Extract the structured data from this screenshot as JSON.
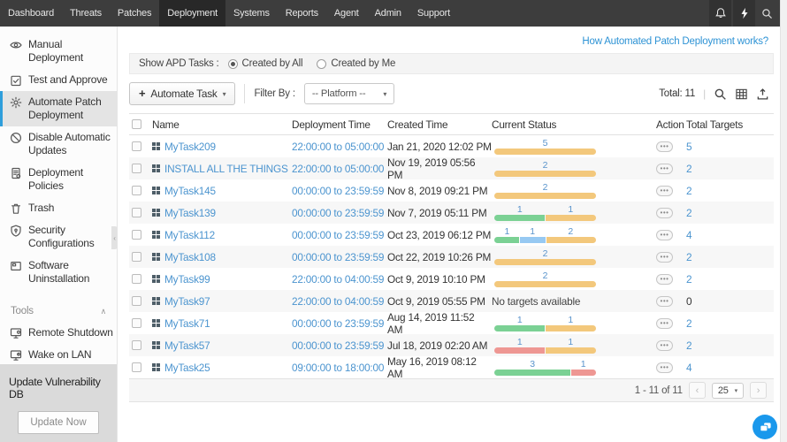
{
  "topnav": {
    "items": [
      {
        "label": "Dashboard",
        "active": false
      },
      {
        "label": "Threats",
        "active": false
      },
      {
        "label": "Patches",
        "active": false
      },
      {
        "label": "Deployment",
        "active": true
      },
      {
        "label": "Systems",
        "active": false
      },
      {
        "label": "Reports",
        "active": false
      },
      {
        "label": "Agent",
        "active": false
      },
      {
        "label": "Admin",
        "active": false
      },
      {
        "label": "Support",
        "active": false
      }
    ],
    "icons": [
      "notification-bell-icon",
      "quick-actions-icon",
      "search-icon"
    ]
  },
  "sidebar": {
    "items": [
      {
        "icon": "eye-icon",
        "label": "Manual Deployment",
        "active": false
      },
      {
        "icon": "test-approve-icon",
        "label": "Test and Approve",
        "active": false
      },
      {
        "icon": "gear-icon",
        "label": "Automate Patch Deployment",
        "active": true
      },
      {
        "icon": "disable-icon",
        "label": "Disable Automatic Updates",
        "active": false
      },
      {
        "icon": "policies-icon",
        "label": "Deployment Policies",
        "active": false
      },
      {
        "icon": "trash-icon",
        "label": "Trash",
        "active": false
      },
      {
        "icon": "security-icon",
        "label": "Security Configurations",
        "active": false
      },
      {
        "icon": "software-icon",
        "label": "Software Uninstallation",
        "active": false
      }
    ],
    "tools_section": {
      "label": "Tools",
      "collapse_caret": "∧",
      "items": [
        {
          "icon": "remote-shutdown-icon",
          "label": "Remote Shutdown"
        },
        {
          "icon": "wake-lan-icon",
          "label": "Wake on LAN"
        }
      ]
    },
    "update_panel": {
      "title": "Update Vulnerability DB",
      "button_label": "Update Now"
    },
    "collapse_handle": "‹"
  },
  "main": {
    "help_link": "How Automated Patch Deployment works?",
    "filter_bar": {
      "label": "Show APD Tasks :",
      "options": [
        {
          "label": "Created by All",
          "selected": true
        },
        {
          "label": "Created by Me",
          "selected": false
        }
      ]
    },
    "toolbar": {
      "plus": "+",
      "automate_button": "Automate Task",
      "caret": "▾",
      "filter_by_label": "Filter By :",
      "platform_select": "-- Platform --",
      "total_label": "Total: 11",
      "separator": "|",
      "icons": [
        "search-icon",
        "column-chooser-icon",
        "export-icon"
      ]
    },
    "table": {
      "columns": [
        "Name",
        "Deployment Time",
        "Created Time",
        "Current Status",
        "Action",
        "Total Targets"
      ],
      "action_icon": "•••",
      "rows": [
        {
          "name": "MyTask209",
          "deployment_time": "22:00:00 to 05:00:00",
          "created_time": "Jan 21, 2020 12:02 PM",
          "status": {
            "segments": [
              {
                "count": 5,
                "color": "yellow"
              }
            ]
          },
          "total_targets": "5"
        },
        {
          "name": "INSTALL ALL THE THINGS",
          "deployment_time": "22:00:00 to 05:00:00",
          "created_time": "Nov 19, 2019 05:56 PM",
          "status": {
            "segments": [
              {
                "count": 2,
                "color": "yellow"
              }
            ]
          },
          "total_targets": "2"
        },
        {
          "name": "MyTask145",
          "deployment_time": "00:00:00 to 23:59:59",
          "created_time": "Nov 8, 2019 09:21 PM",
          "status": {
            "segments": [
              {
                "count": 2,
                "color": "yellow"
              }
            ]
          },
          "total_targets": "2"
        },
        {
          "name": "MyTask139",
          "deployment_time": "00:00:00 to 23:59:59",
          "created_time": "Nov 7, 2019 05:11 PM",
          "status": {
            "segments": [
              {
                "count": 1,
                "color": "green"
              },
              {
                "count": 1,
                "color": "yellow"
              }
            ]
          },
          "total_targets": "2"
        },
        {
          "name": "MyTask112",
          "deployment_time": "00:00:00 to 23:59:59",
          "created_time": "Oct 23, 2019 06:12 PM",
          "status": {
            "segments": [
              {
                "count": 1,
                "color": "green"
              },
              {
                "count": 1,
                "color": "blue"
              },
              {
                "count": 2,
                "color": "yellow"
              }
            ]
          },
          "total_targets": "4"
        },
        {
          "name": "MyTask108",
          "deployment_time": "00:00:00 to 23:59:59",
          "created_time": "Oct 22, 2019 10:26 PM",
          "status": {
            "segments": [
              {
                "count": 2,
                "color": "yellow"
              }
            ]
          },
          "total_targets": "2"
        },
        {
          "name": "MyTask99",
          "deployment_time": "22:00:00 to 04:00:59",
          "created_time": "Oct 9, 2019 10:10 PM",
          "status": {
            "segments": [
              {
                "count": 2,
                "color": "yellow"
              }
            ]
          },
          "total_targets": "2"
        },
        {
          "name": "MyTask97",
          "deployment_time": "22:00:00 to 04:00:59",
          "created_time": "Oct 9, 2019 05:55 PM",
          "status": {
            "text": "No targets available"
          },
          "total_targets": "0"
        },
        {
          "name": "MyTask71",
          "deployment_time": "00:00:00 to 23:59:59",
          "created_time": "Aug 14, 2019 11:52 AM",
          "status": {
            "segments": [
              {
                "count": 1,
                "color": "green"
              },
              {
                "count": 1,
                "color": "yellow"
              }
            ]
          },
          "total_targets": "2"
        },
        {
          "name": "MyTask57",
          "deployment_time": "00:00:00 to 23:59:59",
          "created_time": "Jul 18, 2019 02:20 AM",
          "status": {
            "segments": [
              {
                "count": 1,
                "color": "red"
              },
              {
                "count": 1,
                "color": "yellow"
              }
            ]
          },
          "total_targets": "2"
        },
        {
          "name": "MyTask25",
          "deployment_time": "09:00:00 to 18:00:00",
          "created_time": "May 16, 2019 08:12 AM",
          "status": {
            "segments": [
              {
                "count": 3,
                "color": "green"
              },
              {
                "count": 1,
                "color": "red"
              }
            ]
          },
          "total_targets": "4"
        }
      ]
    },
    "pagination": {
      "range": "1 - 11 of 11",
      "prev": "‹",
      "page_size": "25",
      "caret": "▾",
      "next": "›"
    }
  },
  "status_colors": {
    "green": "#7bd194",
    "blue": "#97c9f2",
    "yellow": "#f3c87c",
    "red": "#ee9793"
  },
  "chat": {
    "icon": "chat-bubble-icon"
  }
}
